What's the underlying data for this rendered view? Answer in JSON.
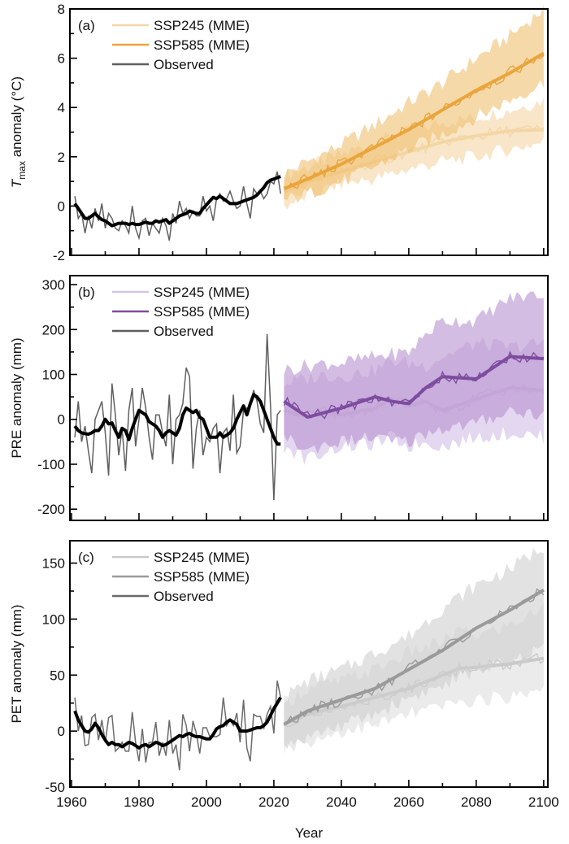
{
  "chart_data": {
    "type": "line",
    "x_label": "Year",
    "x_range": [
      1960,
      2101
    ],
    "x_ticks": [
      1960,
      1980,
      2000,
      2020,
      2040,
      2060,
      2080,
      2100
    ],
    "x_tick_labels": [
      "1960",
      "1980",
      "2000",
      "2020",
      "2040",
      "2060",
      "2080",
      "2100"
    ],
    "grid": false,
    "legend_placement": "top-left",
    "panels": [
      {
        "id": "a",
        "panel_label": "(a)",
        "ylabel_main": "T",
        "ylabel_sub": "max",
        "ylabel_rest": " anomaly (°C)",
        "ylim": [
          -2,
          8
        ],
        "y_ticks": [
          -2,
          0,
          2,
          4,
          6,
          8
        ],
        "y_tick_labels": [
          "-2",
          "0",
          "2",
          "4",
          "6",
          "8"
        ],
        "colors": {
          "ssp245_line": "#f3d6a4",
          "ssp245_band": "#f6dcb0",
          "ssp585_line": "#e9a53c",
          "ssp585_band": "#f0c070",
          "observed": "#5f5f5f",
          "observed_smooth": "#000000"
        },
        "legend": [
          "SSP245 (MME)",
          "SSP585 (MME)",
          "Observed"
        ],
        "observed": {
          "years_start": 1961,
          "values": [
            0.4,
            -0.5,
            -0.3,
            -1.1,
            -0.4,
            -0.9,
            -0.1,
            -0.6,
            0.1,
            -0.9,
            -0.3,
            -0.5,
            -0.9,
            -1.0,
            -0.6,
            -0.8,
            -1.1,
            0.0,
            -0.9,
            -1.3,
            -0.6,
            -0.5,
            -1.2,
            -0.7,
            -0.9,
            -1.1,
            -0.5,
            -0.8,
            -1.4,
            -0.3,
            -0.7,
            0.2,
            -0.3,
            -0.1,
            -0.5,
            -0.2,
            -0.4,
            -0.4,
            0.4,
            -0.2,
            0.0,
            -0.6,
            0.3,
            0.5,
            0.2,
            0.3,
            0.6,
            0.2,
            -0.1,
            0.0,
            0.8,
            0.1,
            -0.5,
            0.7,
            0.5,
            0.6,
            0.3,
            0.5,
            1.0,
            0.9,
            1.4,
            0.5
          ],
          "smoothed": [
            0.1,
            -0.1,
            -0.3,
            -0.5,
            -0.5,
            -0.4,
            -0.3,
            -0.45,
            -0.55,
            -0.6,
            -0.7,
            -0.8,
            -0.75,
            -0.7,
            -0.7,
            -0.7,
            -0.75,
            -0.7,
            -0.75,
            -0.75,
            -0.7,
            -0.65,
            -0.7,
            -0.7,
            -0.6,
            -0.65,
            -0.6,
            -0.55,
            -0.7,
            -0.6,
            -0.5,
            -0.4,
            -0.35,
            -0.3,
            -0.2,
            -0.25,
            -0.3,
            -0.3,
            -0.1,
            0.05,
            0.2,
            0.35,
            0.3,
            0.4,
            0.3,
            0.2,
            0.1,
            0.1,
            0.1,
            0.15,
            0.2,
            0.25,
            0.3,
            0.35,
            0.45,
            0.6,
            0.75,
            0.95,
            1.05,
            1.1,
            1.15,
            1.2
          ]
        },
        "ssp245": {
          "years": [
            2023,
            2030,
            2040,
            2050,
            2060,
            2070,
            2080,
            2090,
            2100
          ],
          "mean": [
            0.6,
            1.0,
            1.4,
            1.8,
            2.2,
            2.6,
            2.85,
            3.05,
            3.1
          ],
          "band_low": [
            0.0,
            0.4,
            0.9,
            1.1,
            1.5,
            1.8,
            2.0,
            2.3,
            2.6
          ],
          "band_high": [
            1.2,
            1.6,
            2.1,
            2.6,
            3.0,
            3.4,
            3.6,
            3.9,
            4.3
          ]
        },
        "ssp585": {
          "years": [
            2023,
            2030,
            2040,
            2050,
            2060,
            2070,
            2080,
            2090,
            2100
          ],
          "mean": [
            0.7,
            1.1,
            1.7,
            2.4,
            3.1,
            3.9,
            4.7,
            5.4,
            6.2
          ],
          "band_low": [
            0.2,
            0.5,
            1.0,
            1.6,
            2.3,
            2.9,
            3.6,
            4.3,
            5.0
          ],
          "band_high": [
            1.3,
            1.8,
            2.5,
            3.3,
            4.2,
            5.0,
            6.0,
            6.9,
            8.0
          ]
        }
      },
      {
        "id": "b",
        "panel_label": "(b)",
        "ylabel_main": "PRE anomaly (mm)",
        "ylabel_sub": "",
        "ylabel_rest": "",
        "ylim": [
          -225,
          320
        ],
        "y_ticks": [
          -200,
          -100,
          0,
          100,
          200,
          300
        ],
        "y_tick_labels": [
          "-200",
          "-100",
          "0",
          "100",
          "200",
          "300"
        ],
        "colors": {
          "ssp245_line": "#d6c3e6",
          "ssp245_band": "#d9c6e9",
          "ssp585_line": "#7d4c9e",
          "ssp585_band": "#b791cf",
          "observed": "#5f5f5f",
          "observed_smooth": "#000000"
        },
        "legend": [
          "SSP245 (MME)",
          "SSP585 (MME)",
          "Observed"
        ],
        "observed": {
          "years_start": 1961,
          "values": [
            -40,
            40,
            -50,
            -15,
            -70,
            -120,
            0,
            20,
            40,
            -30,
            -125,
            80,
            10,
            -80,
            -20,
            -115,
            20,
            70,
            -60,
            0,
            70,
            25,
            -40,
            -90,
            10,
            10,
            -30,
            -60,
            55,
            -100,
            0,
            10,
            35,
            115,
            95,
            -110,
            -20,
            20,
            -80,
            -40,
            -50,
            -20,
            -10,
            -120,
            -30,
            -20,
            -70,
            55,
            -75,
            -60,
            20,
            25,
            30,
            65,
            40,
            -10,
            -30,
            190,
            30,
            -180,
            10,
            20
          ],
          "smoothed": [
            -15,
            -25,
            -30,
            -32,
            -33,
            -30,
            -25,
            -25,
            -15,
            0,
            -10,
            -8,
            -25,
            -40,
            -20,
            -25,
            -45,
            -20,
            0,
            20,
            15,
            10,
            -5,
            -10,
            -15,
            -25,
            -40,
            -30,
            -25,
            -30,
            -35,
            -20,
            10,
            25,
            20,
            15,
            20,
            5,
            0,
            -20,
            -40,
            -40,
            -40,
            -30,
            -40,
            -35,
            -30,
            -20,
            0,
            15,
            30,
            10,
            35,
            55,
            50,
            40,
            20,
            0,
            -20,
            -40,
            -55,
            -55
          ]
        },
        "ssp245": {
          "years": [
            2023,
            2030,
            2035,
            2040,
            2050,
            2055,
            2060,
            2065,
            2070,
            2080,
            2090,
            2100
          ],
          "mean": [
            20,
            5,
            15,
            10,
            25,
            45,
            30,
            40,
            20,
            45,
            70,
            65
          ],
          "band_low": [
            -60,
            -90,
            -70,
            -60,
            -55,
            -40,
            -60,
            -50,
            -60,
            -40,
            -30,
            -40
          ],
          "band_high": [
            80,
            90,
            100,
            95,
            110,
            130,
            125,
            120,
            140,
            170,
            160,
            170
          ]
        },
        "ssp585": {
          "years": [
            2023,
            2030,
            2035,
            2040,
            2050,
            2055,
            2060,
            2065,
            2070,
            2080,
            2090,
            2100
          ],
          "mean": [
            40,
            5,
            15,
            25,
            50,
            40,
            35,
            70,
            95,
            90,
            140,
            135
          ],
          "band_low": [
            -40,
            -70,
            -55,
            -50,
            -40,
            -50,
            -50,
            -30,
            -20,
            -10,
            20,
            10
          ],
          "band_high": [
            110,
            120,
            125,
            125,
            140,
            145,
            150,
            190,
            220,
            220,
            270,
            280
          ]
        }
      },
      {
        "id": "c",
        "panel_label": "(c)",
        "ylabel_main": "PET anomaly (mm)",
        "ylabel_sub": "",
        "ylabel_rest": "",
        "ylim": [
          -50,
          170
        ],
        "y_ticks": [
          -50,
          0,
          50,
          100,
          150
        ],
        "y_tick_labels": [
          "-50",
          "0",
          "50",
          "100",
          "150"
        ],
        "colors": {
          "ssp245_line": "#c9c9c9",
          "ssp245_band": "#e3e3e3",
          "ssp585_line": "#9a9a9a",
          "ssp585_band": "#cfcfcf",
          "observed": "#6b6b6b",
          "observed_smooth": "#000000"
        },
        "legend": [
          "SSP245 (MME)",
          "SSP585 (MME)",
          "Observed"
        ],
        "observed": {
          "years_start": 1961,
          "values": [
            30,
            0,
            14,
            -13,
            -12,
            12,
            15,
            -8,
            10,
            -10,
            12,
            14,
            -18,
            -15,
            -10,
            -18,
            -18,
            17,
            -10,
            -27,
            2,
            -28,
            -10,
            -10,
            8,
            -22,
            -10,
            -22,
            10,
            -20,
            -12,
            -35,
            15,
            5,
            -18,
            9,
            -2,
            -20,
            3,
            3,
            -5,
            -5,
            -5,
            -3,
            30,
            5,
            10,
            5,
            16,
            -10,
            28,
            -15,
            -27,
            15,
            13,
            13,
            2,
            15,
            22,
            -2,
            45,
            30
          ],
          "smoothed": [
            18,
            10,
            5,
            0,
            -1,
            2,
            7,
            3,
            -3,
            -8,
            -12,
            -10,
            -12,
            -12,
            -14,
            -12,
            -10,
            -11,
            -13,
            -15,
            -13,
            -12,
            -14,
            -12,
            -10,
            -11,
            -13,
            -12,
            -10,
            -8,
            -6,
            -4,
            -5,
            -3,
            -2,
            -4,
            -5,
            -5,
            -6,
            -7,
            -7,
            -3,
            2,
            4,
            5,
            8,
            10,
            8,
            6,
            0,
            0,
            0,
            1,
            2,
            3,
            3,
            5,
            8,
            14,
            20,
            25,
            30
          ]
        },
        "ssp245": {
          "years": [
            2023,
            2030,
            2040,
            2050,
            2060,
            2070,
            2075,
            2080,
            2090,
            2100
          ],
          "mean": [
            6,
            15,
            22,
            30,
            38,
            50,
            56,
            57,
            60,
            65
          ],
          "band_low": [
            -15,
            -10,
            0,
            5,
            15,
            22,
            25,
            28,
            30,
            40
          ],
          "band_high": [
            25,
            38,
            45,
            55,
            70,
            80,
            90,
            85,
            95,
            110
          ]
        },
        "ssp585": {
          "years": [
            2023,
            2030,
            2040,
            2050,
            2060,
            2070,
            2080,
            2090,
            2100
          ],
          "mean": [
            6,
            18,
            28,
            38,
            55,
            72,
            92,
            108,
            126
          ],
          "band_low": [
            -15,
            -5,
            5,
            15,
            30,
            40,
            55,
            60,
            75
          ],
          "band_high": [
            30,
            45,
            55,
            70,
            85,
            110,
            130,
            145,
            165
          ]
        }
      }
    ]
  }
}
